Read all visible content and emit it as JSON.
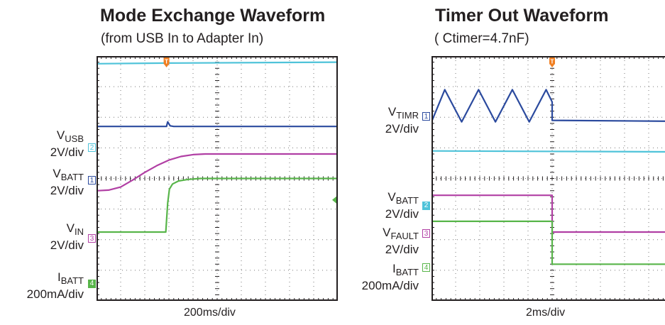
{
  "colors": {
    "cyan": "#4fc3d9",
    "blue": "#2b4a9e",
    "magenta": "#b13fa4",
    "green": "#58b54a",
    "trigger": "#f07f22",
    "frame": "#231f20",
    "grid": "#777777"
  },
  "chart_data": [
    {
      "type": "line",
      "title": "Mode Exchange Waveform",
      "subtitle": "(from USB In to Adapter In)",
      "xlabel": "200ms/div",
      "grid": true,
      "divisions": {
        "x": 10,
        "y": 8
      },
      "xlim": [
        0,
        10
      ],
      "ylim": [
        0,
        8
      ],
      "x_unit": "div",
      "y_unit": "div",
      "trigger_x": 2.9,
      "channels": [
        {
          "marker": "2",
          "marker_style": "outline",
          "color": "cyan",
          "name_main": "V",
          "name_sub": "USB",
          "scale": "2V/div",
          "ref_level": 5.0
        },
        {
          "marker": "1",
          "marker_style": "outline",
          "color": "blue",
          "name_main": "V",
          "name_sub": "BATT",
          "scale": "2V/div",
          "ref_level": 4.0
        },
        {
          "marker": "3",
          "marker_style": "outline",
          "color": "magenta",
          "name_main": "V",
          "name_sub": "IN",
          "scale": "2V/div",
          "ref_level": 2.0
        },
        {
          "marker": "4",
          "marker_style": "filled",
          "color": "green",
          "name_main": "I",
          "name_sub": "BATT",
          "scale": "200mA/div",
          "ref_level": 0.5
        }
      ],
      "series": [
        {
          "channel": "2",
          "color": "cyan",
          "x": [
            0,
            2.9,
            10
          ],
          "y": [
            7.75,
            7.77,
            7.8
          ]
        },
        {
          "channel": "1",
          "color": "blue",
          "x": [
            0,
            2.9,
            2.95,
            3.05,
            3.2,
            10
          ],
          "y": [
            5.7,
            5.7,
            5.85,
            5.72,
            5.7,
            5.7
          ]
        },
        {
          "channel": "3",
          "color": "magenta",
          "x": [
            0,
            0.5,
            1.0,
            1.5,
            2.0,
            2.5,
            3.0,
            3.5,
            4.0,
            4.5,
            10
          ],
          "y": [
            3.6,
            3.62,
            3.72,
            3.95,
            4.2,
            4.42,
            4.6,
            4.72,
            4.78,
            4.8,
            4.8
          ]
        },
        {
          "channel": "4",
          "color": "green",
          "x": [
            0,
            2.87,
            2.95,
            3.02,
            3.15,
            3.4,
            3.8,
            4.3,
            10
          ],
          "y": [
            2.25,
            2.25,
            3.2,
            3.65,
            3.82,
            3.92,
            3.97,
            4.0,
            4.0
          ]
        }
      ],
      "right_marker_y": 3.3
    },
    {
      "type": "line",
      "title": "Timer Out Waveform",
      "subtitle": "( Ctimer=4.7nF)",
      "xlabel": "2ms/div",
      "grid": true,
      "divisions": {
        "x": 10,
        "y": 8
      },
      "xlim": [
        0,
        10
      ],
      "ylim": [
        0,
        8
      ],
      "x_unit": "div",
      "y_unit": "div",
      "trigger_x": 5.0,
      "channels": [
        {
          "marker": "1",
          "marker_style": "outline",
          "color": "blue",
          "name_main": "V",
          "name_sub": "TIMR",
          "scale": "2V/div",
          "ref_level": 5.8
        },
        {
          "marker": "2",
          "marker_style": "filled",
          "color": "cyan",
          "name_main": "V",
          "name_sub": "BATT",
          "scale": "2V/div",
          "ref_level": 3.3
        },
        {
          "marker": "3",
          "marker_style": "outline",
          "color": "magenta",
          "name_main": "V",
          "name_sub": "FAULT",
          "scale": "2V/div",
          "ref_level": 2.2
        },
        {
          "marker": "4",
          "marker_style": "outline",
          "color": "green",
          "name_main": "I",
          "name_sub": "BATT",
          "scale": "200mA/div",
          "ref_level": 1.45
        }
      ],
      "series": [
        {
          "channel": "1",
          "color": "blue",
          "x": [
            0,
            0.55,
            1.25,
            1.95,
            2.65,
            3.35,
            4.05,
            4.75,
            5.0,
            5.0,
            10
          ],
          "y": [
            5.85,
            6.9,
            5.85,
            6.9,
            5.85,
            6.9,
            5.85,
            6.9,
            6.5,
            5.9,
            5.87
          ]
        },
        {
          "channel": "2",
          "color": "cyan",
          "x": [
            0,
            10
          ],
          "y": [
            4.9,
            4.87
          ]
        },
        {
          "channel": "3",
          "color": "magenta",
          "x": [
            0,
            5.0,
            5.0,
            10
          ],
          "y": [
            3.45,
            3.45,
            2.25,
            2.25
          ]
        },
        {
          "channel": "4",
          "color": "green",
          "x": [
            0,
            5.0,
            5.0,
            10
          ],
          "y": [
            2.6,
            2.6,
            1.2,
            1.2
          ]
        }
      ]
    }
  ]
}
